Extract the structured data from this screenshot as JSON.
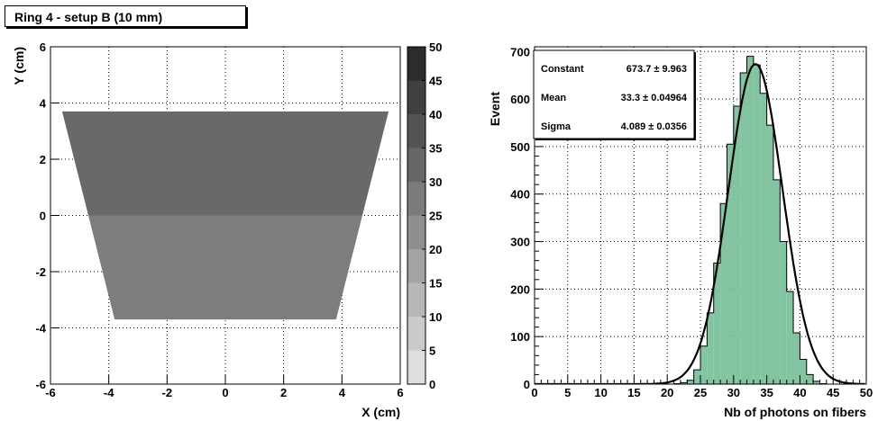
{
  "title": "Ring 4 - setup B (10 mm)",
  "chart_data": [
    {
      "type": "heatmap",
      "xlabel": "X (cm)",
      "ylabel": "Y (cm)",
      "xlim": [
        -6,
        6
      ],
      "ylim": [
        -6,
        6
      ],
      "x_ticks": [
        "-6",
        "-4",
        "-2",
        "0",
        "2",
        "4",
        "6"
      ],
      "y_ticks": [
        "-6",
        "-4",
        "-2",
        "0",
        "2",
        "4",
        "6"
      ],
      "zlim": [
        0,
        50
      ],
      "z_ticks": [
        "0",
        "5",
        "10",
        "15",
        "20",
        "25",
        "30",
        "35",
        "40",
        "45",
        "50"
      ],
      "grid": true,
      "shape_top_y": 3.7,
      "shape_bottom_y": -3.7,
      "shape_top_x": [
        -5.6,
        5.6
      ],
      "shape_bottom_x": [
        -3.8,
        3.8
      ],
      "regions": [
        {
          "name": "upper",
          "y_range": [
            0,
            3.7
          ],
          "z": 32
        },
        {
          "name": "lower",
          "y_range": [
            -3.7,
            0
          ],
          "z": 27
        }
      ]
    },
    {
      "type": "bar",
      "xlabel": "Nb of photons on fibers",
      "ylabel": "Event",
      "xlim": [
        0,
        50
      ],
      "ylim": [
        0,
        710
      ],
      "x_ticks": [
        "0",
        "5",
        "10",
        "15",
        "20",
        "25",
        "30",
        "35",
        "40",
        "45",
        "50"
      ],
      "y_ticks": [
        "0",
        "100",
        "200",
        "300",
        "400",
        "500",
        "600",
        "700"
      ],
      "grid": true,
      "bin_width": 1,
      "bin_edges_start": 0,
      "values": [
        0,
        0,
        0,
        0,
        0,
        0,
        0,
        0,
        0,
        0,
        0,
        0,
        0,
        0,
        0,
        0,
        0,
        0,
        0,
        0,
        0,
        1,
        3,
        8,
        30,
        80,
        150,
        255,
        380,
        505,
        585,
        655,
        690,
        672,
        612,
        545,
        430,
        300,
        195,
        108,
        52,
        20,
        6,
        1,
        0,
        0,
        0,
        0,
        0,
        0
      ],
      "fit": {
        "type": "gaussian",
        "constant": 673.7,
        "mean": 33.3,
        "sigma": 4.089
      },
      "stats": [
        {
          "label": "Constant",
          "value": "673.7 ± 9.963"
        },
        {
          "label": "Mean",
          "value": "33.3 ± 0.04964"
        },
        {
          "label": "Sigma",
          "value": "4.089 ± 0.0356"
        }
      ],
      "colors": {
        "fill": "#82c4a0",
        "edge": "#000000"
      }
    }
  ]
}
